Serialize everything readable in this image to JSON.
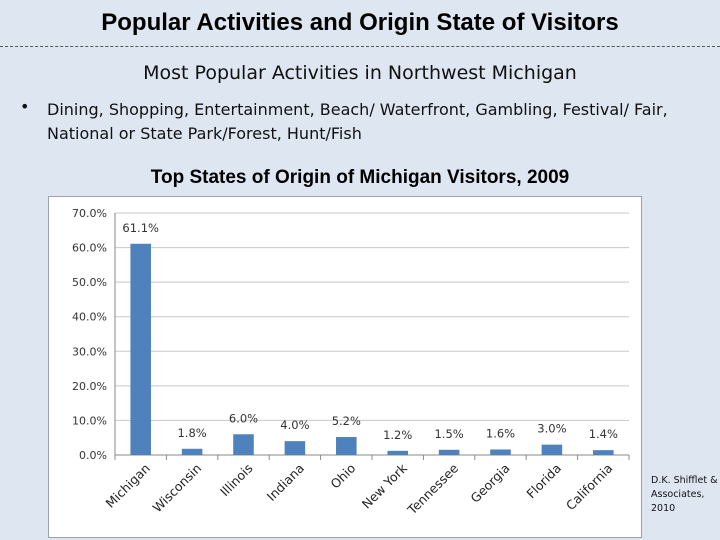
{
  "slide": {
    "title": "Popular Activities and Origin State of Visitors",
    "subheading": "Most Popular Activities in Northwest Michigan",
    "bullet_symbol": "•",
    "bullet_text": "Dining, Shopping, Entertainment, Beach/ Waterfront, Gambling, Festival/ Fair, National or State Park/Forest, Hunt/Fish",
    "credit": "D.K. Shifflet & Associates, 2010"
  },
  "chart_data": {
    "type": "bar",
    "title": "Top States of Origin of Michigan Visitors, 2009",
    "categories": [
      "Michigan",
      "Wisconsin",
      "Illinois",
      "Indiana",
      "Ohio",
      "New York",
      "Tennessee",
      "Georgia",
      "Florida",
      "California"
    ],
    "values": [
      61.1,
      1.8,
      6.0,
      4.0,
      5.2,
      1.2,
      1.5,
      1.6,
      3.0,
      1.4
    ],
    "data_labels": [
      "61.1%",
      "1.8%",
      "6.0%",
      "4.0%",
      "5.2%",
      "1.2%",
      "1.5%",
      "1.6%",
      "3.0%",
      "1.4%"
    ],
    "y_ticks": [
      "0.0%",
      "10.0%",
      "20.0%",
      "30.0%",
      "40.0%",
      "50.0%",
      "60.0%",
      "70.0%"
    ],
    "ylim": [
      0,
      70
    ],
    "grid": true,
    "xlabel": "",
    "ylabel": "",
    "bar_color": "#4f81bd"
  }
}
